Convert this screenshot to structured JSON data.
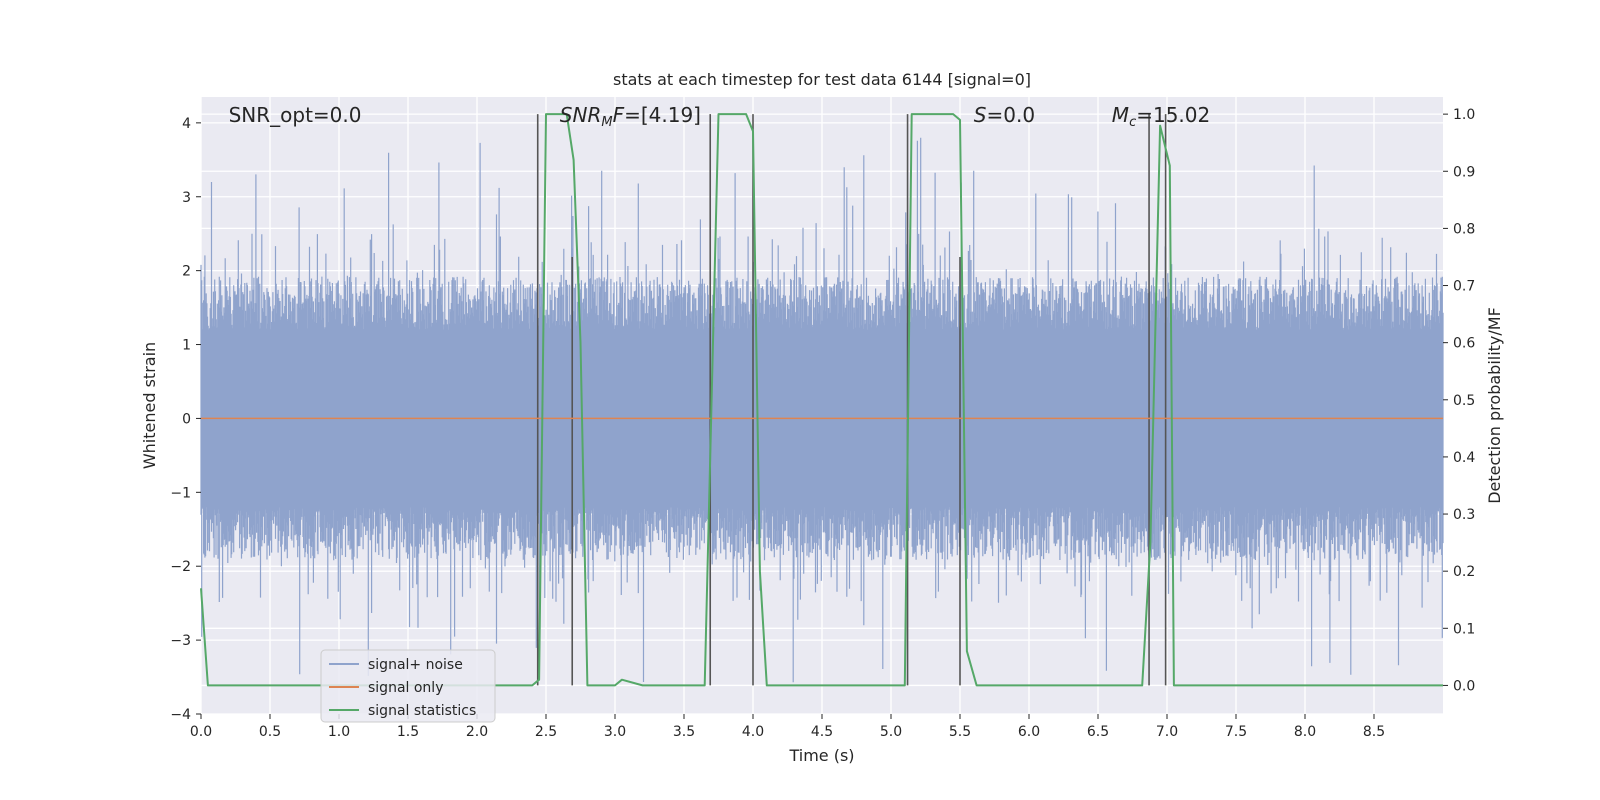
{
  "chart_data": {
    "type": "line",
    "title": "stats at each timestep for test data 6144 [signal=0]",
    "xlabel": "Time (s)",
    "ylabel_left": "Whitened strain",
    "ylabel_right": "Detection probability/MF",
    "xlim": [
      0.0,
      9.0
    ],
    "ylim_left": [
      -4.0,
      4.35
    ],
    "ylim_right": [
      -0.05,
      1.03
    ],
    "x_ticks": [
      0.0,
      0.5,
      1.0,
      1.5,
      2.0,
      2.5,
      3.0,
      3.5,
      4.0,
      4.5,
      5.0,
      5.5,
      6.0,
      6.5,
      7.0,
      7.5,
      8.0,
      8.5
    ],
    "x_tick_labels": [
      "0.0",
      "0.5",
      "1.0",
      "1.5",
      "2.0",
      "2.5",
      "3.0",
      "3.5",
      "4.0",
      "4.5",
      "5.0",
      "5.5",
      "6.0",
      "6.5",
      "7.0",
      "7.5",
      "8.0",
      "8.5"
    ],
    "y_left_ticks": [
      -4,
      -3,
      -2,
      -1,
      0,
      1,
      2,
      3,
      4
    ],
    "y_left_tick_labels": [
      "−4",
      "−3",
      "−2",
      "−1",
      "0",
      "1",
      "2",
      "3",
      "4"
    ],
    "y_right_ticks": [
      0.0,
      0.1,
      0.2,
      0.3,
      0.4,
      0.5,
      0.6,
      0.7,
      0.8,
      0.9,
      1.0
    ],
    "y_right_tick_labels": [
      "0.0",
      "0.1",
      "0.2",
      "0.3",
      "0.4",
      "0.5",
      "0.6",
      "0.7",
      "0.8",
      "0.9",
      "1.0"
    ],
    "grid": true,
    "legend_position": "lower-left",
    "colors": {
      "background": "#eaeaf2",
      "grid": "#ffffff",
      "signal_noise": "#8fa3cc",
      "signal_only": "#dd8452",
      "statistics": "#55a868",
      "markers": "#555555"
    },
    "annotations": [
      {
        "text": "SNR_opt=0.0",
        "x": 0.2
      },
      {
        "text": "SNR_MF=[4.19]",
        "x": 2.6
      },
      {
        "text": "S=0.0",
        "x": 5.6
      },
      {
        "text": "M_c=15.02",
        "x": 6.6
      }
    ],
    "noise_band": {
      "typical_upper": 1.6,
      "typical_lower": -1.6,
      "peak_max": 3.8,
      "peak_min": -3.6
    },
    "series": [
      {
        "name": "signal+ noise",
        "axis": "left",
        "style": "dense-noise"
      },
      {
        "name": "signal only",
        "axis": "left",
        "x": [
          0.0,
          9.0
        ],
        "y": [
          0.0,
          0.0
        ]
      },
      {
        "name": "signal statistics",
        "axis": "right",
        "x": [
          0.0,
          0.05,
          0.12,
          0.2,
          2.4,
          2.45,
          2.5,
          2.55,
          2.65,
          2.7,
          2.75,
          2.8,
          3.0,
          3.05,
          3.2,
          3.65,
          3.75,
          3.8,
          3.95,
          4.0,
          4.05,
          4.1,
          4.15,
          5.1,
          5.15,
          5.25,
          5.45,
          5.5,
          5.55,
          5.62,
          6.5,
          6.82,
          6.88,
          6.95,
          7.02,
          7.05,
          7.12,
          7.35,
          7.4,
          9.0
        ],
        "y": [
          0.17,
          0.0,
          0.0,
          0.0,
          0.0,
          0.01,
          1.0,
          1.0,
          1.0,
          0.92,
          0.6,
          0.0,
          0.0,
          0.01,
          0.0,
          0.0,
          1.0,
          1.0,
          1.0,
          0.97,
          0.2,
          0.0,
          0.0,
          0.0,
          1.0,
          1.0,
          1.0,
          0.99,
          0.06,
          0.0,
          0.0,
          0.0,
          0.25,
          0.98,
          0.91,
          0.0,
          0.0,
          0.0,
          0.0,
          0.0
        ]
      }
    ],
    "vertical_markers_full": [
      2.44,
      3.69,
      4.0,
      5.12,
      6.87,
      6.99
    ],
    "vertical_markers_partial": [
      2.69,
      5.5
    ],
    "legend": [
      "signal+ noise",
      "signal only",
      "signal statistics"
    ]
  }
}
